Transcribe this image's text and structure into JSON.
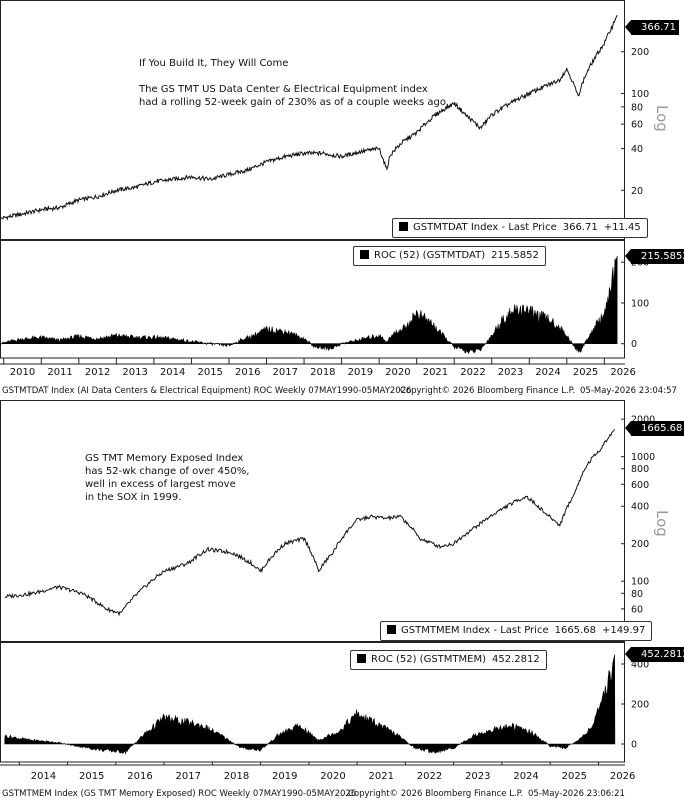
{
  "panel1": {
    "annotation_title": "If You Build It, They Will Come",
    "annotation_body": "The GS TMT US Data Center & Electrical Equipment index\nhad a rolling 52-week gain of 230% as of a couple weeks ago.",
    "legend_main": {
      "ticker": "GSTMTDAT Index - Last Price",
      "value": "366.71",
      "change": "+11.45"
    },
    "legend_roc": {
      "label": "ROC (52) (GSTMTDAT)",
      "value": "215.5852"
    },
    "last_price_tag": "366.71",
    "roc_tag": "215.5852",
    "scale_word": "Log",
    "footer_left": "GSTMTDAT Index (AI Data Centers & Electrical Equipment) ROC Weekly 07MAY1990-05MAY2026",
    "footer_mid": "Copyright© 2026 Bloomberg Finance L.P.",
    "footer_right": "05-May-2026 23:04:57"
  },
  "panel2": {
    "annotation_body": "GS TMT Memory Exposed Index\nhas 52-wk change of over 450%,\nwell in excess of largest move\nin the SOX in 1999.",
    "legend_main": {
      "ticker": "GSTMTMEM Index - Last Price",
      "value": "1665.68",
      "change": "+149.97"
    },
    "legend_roc": {
      "label": "ROC (52) (GSTMTMEM)",
      "value": "452.2812"
    },
    "last_price_tag": "1665.68",
    "roc_tag": "452.2812",
    "scale_word": "Log",
    "footer_left": "GSTMTMEM Index (GS TMT Memory Exposed) ROC Weekly 07MAY1990-05MAY2026",
    "footer_mid": "Copyright© 2026 Bloomberg Finance L.P.",
    "footer_right": "05-May-2026 23:06:21"
  },
  "chart_data": [
    {
      "type": "line",
      "name": "GSTMTDAT price",
      "scale": "log",
      "x_years": [
        2009.9,
        2010.5,
        2011.0,
        2011.5,
        2012.0,
        2012.5,
        2013.0,
        2013.5,
        2014.0,
        2014.5,
        2015.0,
        2015.5,
        2016.0,
        2016.5,
        2017.0,
        2017.5,
        2018.0,
        2018.5,
        2019.0,
        2019.5,
        2020.0,
        2020.2,
        2020.3,
        2020.6,
        2021.0,
        2021.5,
        2022.0,
        2022.3,
        2022.7,
        2023.0,
        2023.5,
        2024.0,
        2024.5,
        2024.8,
        2025.0,
        2025.3,
        2025.5,
        2025.8,
        2026.0,
        2026.2,
        2026.34
      ],
      "values": [
        12.5,
        13.5,
        14.5,
        15,
        17,
        18,
        20,
        21,
        23,
        24,
        25,
        24,
        26,
        28,
        32,
        35,
        37,
        37,
        35,
        38,
        40,
        28,
        36,
        44,
        52,
        70,
        85,
        70,
        56,
        70,
        85,
        100,
        115,
        125,
        150,
        95,
        135,
        190,
        230,
        300,
        366.71
      ],
      "yticks": [
        20,
        40,
        60,
        80,
        100,
        200
      ],
      "ylim": [
        10,
        400
      ]
    },
    {
      "type": "area",
      "name": "ROC (52) (GSTMTDAT)",
      "x_years": [
        2009.9,
        2010.4,
        2011.0,
        2011.5,
        2012.0,
        2012.5,
        2013.0,
        2013.5,
        2014.0,
        2014.5,
        2015.0,
        2015.5,
        2016.0,
        2016.3,
        2016.6,
        2017.0,
        2017.5,
        2018.0,
        2018.3,
        2018.7,
        2019.0,
        2019.5,
        2020.0,
        2020.2,
        2020.4,
        2020.7,
        2021.0,
        2021.4,
        2021.7,
        2022.0,
        2022.4,
        2022.7,
        2023.0,
        2023.3,
        2023.6,
        2023.9,
        2024.2,
        2024.5,
        2024.8,
        2025.0,
        2025.2,
        2025.35,
        2025.6,
        2025.9,
        2026.1,
        2026.25,
        2026.34
      ],
      "values": [
        0,
        10,
        15,
        8,
        18,
        12,
        20,
        15,
        15,
        12,
        5,
        0,
        -5,
        8,
        18,
        35,
        30,
        12,
        -8,
        -12,
        0,
        10,
        20,
        5,
        25,
        40,
        75,
        50,
        20,
        -8,
        -20,
        -15,
        20,
        60,
        80,
        85,
        70,
        60,
        40,
        20,
        -8,
        -20,
        20,
        60,
        100,
        180,
        215.5852
      ],
      "yticks": [
        0,
        100,
        200
      ],
      "ylim": [
        -40,
        230
      ]
    },
    {
      "type": "line",
      "name": "GSTMTMEM price",
      "scale": "log",
      "x_years": [
        2013.7,
        2014.3,
        2014.8,
        2015.3,
        2015.8,
        2016.1,
        2016.6,
        2017.0,
        2017.5,
        2017.9,
        2018.4,
        2018.8,
        2019.0,
        2019.5,
        2019.9,
        2020.2,
        2020.5,
        2021.0,
        2021.3,
        2021.6,
        2021.9,
        2022.3,
        2022.7,
        2023.0,
        2023.5,
        2024.0,
        2024.5,
        2024.9,
        2025.2,
        2025.5,
        2025.8,
        2026.0,
        2026.2,
        2026.34
      ],
      "values": [
        75,
        80,
        90,
        80,
        60,
        55,
        90,
        120,
        140,
        180,
        170,
        140,
        120,
        200,
        220,
        120,
        170,
        310,
        330,
        320,
        330,
        220,
        190,
        200,
        280,
        380,
        480,
        350,
        280,
        500,
        900,
        1100,
        1400,
        1665.68
      ],
      "yticks": [
        40,
        60,
        80,
        100,
        200,
        400,
        600,
        800,
        1000,
        2000
      ],
      "ylim": [
        35,
        2200
      ]
    },
    {
      "type": "area",
      "name": "ROC (52) (GSTMTMEM)",
      "x_years": [
        2013.7,
        2014.2,
        2014.7,
        2015.2,
        2015.7,
        2016.2,
        2016.6,
        2017.0,
        2017.4,
        2017.8,
        2018.2,
        2018.6,
        2019.0,
        2019.4,
        2019.8,
        2020.2,
        2020.6,
        2021.0,
        2021.4,
        2021.8,
        2022.2,
        2022.6,
        2023.0,
        2023.4,
        2023.8,
        2024.2,
        2024.6,
        2025.0,
        2025.3,
        2025.6,
        2025.9,
        2026.1,
        2026.25,
        2026.34
      ],
      "values": [
        40,
        20,
        10,
        -10,
        -30,
        -40,
        50,
        130,
        110,
        90,
        40,
        -20,
        -30,
        50,
        90,
        20,
        60,
        150,
        100,
        50,
        -20,
        -40,
        -20,
        40,
        70,
        90,
        60,
        -10,
        -20,
        20,
        100,
        220,
        350,
        452.2812
      ],
      "yticks": [
        0,
        200,
        400
      ],
      "ylim": [
        -80,
        480
      ]
    }
  ],
  "axis_years_top": [
    "2010",
    "2011",
    "2012",
    "2013",
    "2014",
    "2015",
    "2016",
    "2017",
    "2018",
    "2019",
    "2020",
    "2021",
    "2022",
    "2023",
    "2024",
    "2025",
    "2026"
  ],
  "axis_years_bottom": [
    "2014",
    "2015",
    "2016",
    "2017",
    "2018",
    "2019",
    "2020",
    "2021",
    "2022",
    "2023",
    "2024",
    "2025",
    "2026"
  ]
}
